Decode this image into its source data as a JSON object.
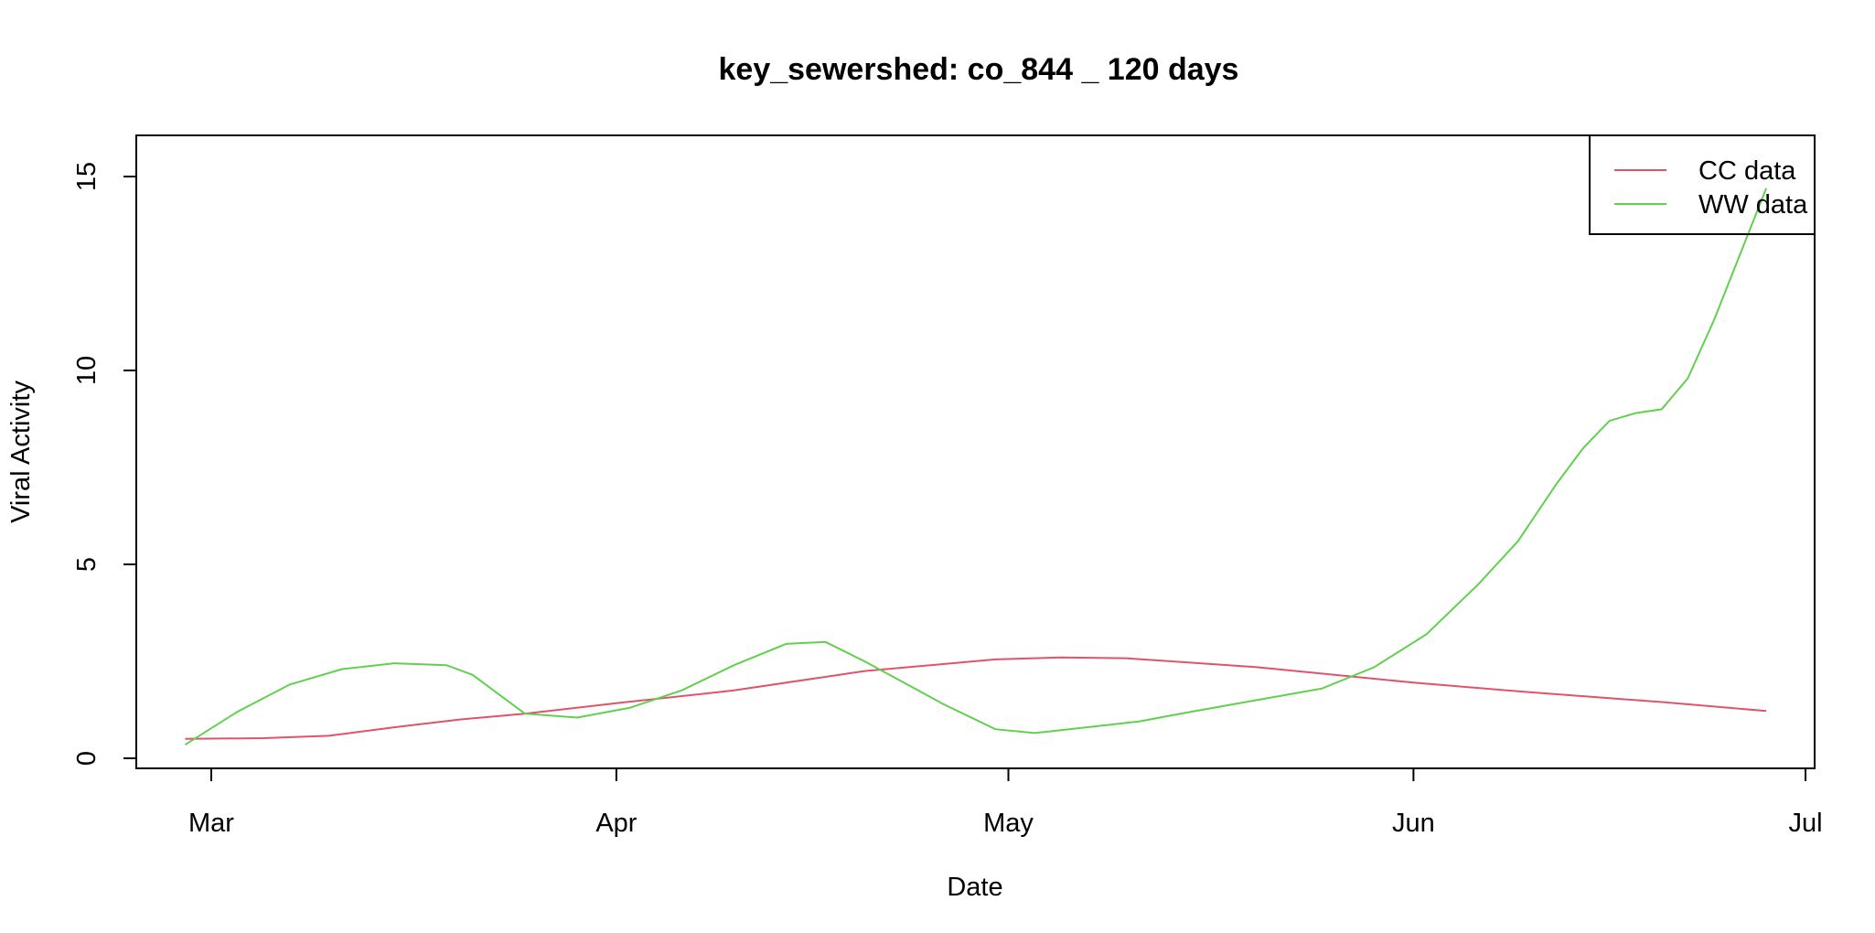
{
  "chart_data": {
    "type": "line",
    "title": "key_sewershed:  co_844 _ 120  days",
    "xlabel": "Date",
    "ylabel": "Viral Activity",
    "x_ticks": [
      "Mar",
      "Apr",
      "May",
      "Jun",
      "Jul"
    ],
    "x_tick_dates": [
      "2024-03-01",
      "2024-04-01",
      "2024-05-01",
      "2024-06-01",
      "2024-07-01"
    ],
    "y_ticks": [
      0,
      5,
      10,
      15
    ],
    "ylim": [
      -0.25,
      16.1
    ],
    "xlim": [
      "2024-02-24",
      "2024-07-01"
    ],
    "legend_position": "top-right",
    "series": [
      {
        "name": "CC data",
        "color": "#DF536B",
        "x": [
          "2024-02-28",
          "2024-03-05",
          "2024-03-10",
          "2024-03-15",
          "2024-03-20",
          "2024-03-25",
          "2024-04-01",
          "2024-04-10",
          "2024-04-20",
          "2024-04-30",
          "2024-05-05",
          "2024-05-10",
          "2024-05-20",
          "2024-06-01",
          "2024-06-10",
          "2024-06-20",
          "2024-06-28"
        ],
        "y": [
          0.5,
          0.52,
          0.58,
          0.8,
          1.0,
          1.15,
          1.42,
          1.75,
          2.25,
          2.55,
          2.6,
          2.58,
          2.35,
          1.95,
          1.7,
          1.45,
          1.22
        ]
      },
      {
        "name": "WW data",
        "color": "#61D04F",
        "x": [
          "2024-02-28",
          "2024-03-03",
          "2024-03-07",
          "2024-03-11",
          "2024-03-15",
          "2024-03-19",
          "2024-03-21",
          "2024-03-25",
          "2024-03-29",
          "2024-04-02",
          "2024-04-06",
          "2024-04-10",
          "2024-04-14",
          "2024-04-17",
          "2024-04-20",
          "2024-04-23",
          "2024-04-26",
          "2024-04-30",
          "2024-05-03",
          "2024-05-07",
          "2024-05-11",
          "2024-05-15",
          "2024-05-20",
          "2024-05-25",
          "2024-05-29",
          "2024-06-02",
          "2024-06-06",
          "2024-06-09",
          "2024-06-12",
          "2024-06-14",
          "2024-06-16",
          "2024-06-18",
          "2024-06-20",
          "2024-06-22",
          "2024-06-24",
          "2024-06-26",
          "2024-06-28"
        ],
        "y": [
          0.35,
          1.2,
          1.9,
          2.3,
          2.45,
          2.4,
          2.15,
          1.15,
          1.05,
          1.3,
          1.75,
          2.4,
          2.95,
          3.0,
          2.5,
          1.95,
          1.4,
          0.75,
          0.65,
          0.8,
          0.95,
          1.2,
          1.5,
          1.8,
          2.35,
          3.2,
          4.5,
          5.6,
          7.1,
          8.0,
          8.7,
          8.9,
          9.0,
          9.8,
          11.3,
          13.0,
          14.7
        ]
      }
    ]
  }
}
